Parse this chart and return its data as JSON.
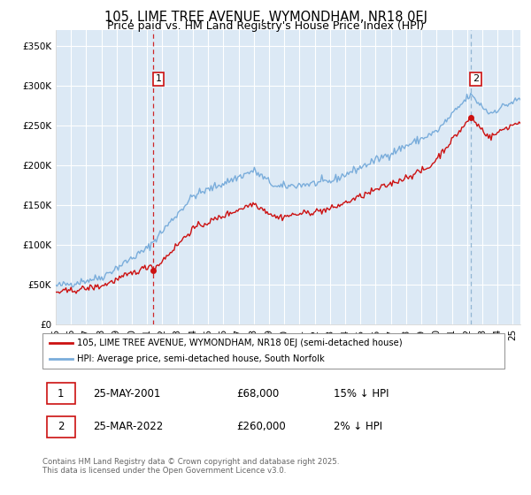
{
  "title": "105, LIME TREE AVENUE, WYMONDHAM, NR18 0EJ",
  "subtitle": "Price paid vs. HM Land Registry's House Price Index (HPI)",
  "yticks": [
    0,
    50000,
    100000,
    150000,
    200000,
    250000,
    300000,
    350000
  ],
  "ytick_labels": [
    "£0",
    "£50K",
    "£100K",
    "£150K",
    "£200K",
    "£250K",
    "£300K",
    "£350K"
  ],
  "xlim_start": 1995,
  "xlim_end": 2025.5,
  "ylim": [
    0,
    370000
  ],
  "background_color": "#ffffff",
  "plot_bg_color": "#dce9f5",
  "grid_color": "#ffffff",
  "hpi_color": "#7aaddb",
  "price_color": "#cc1111",
  "dash1_color": "#cc1111",
  "dash2_color": "#8ab0d0",
  "marker1_year": 2001.38,
  "marker1_price": 68000,
  "marker2_year": 2022.22,
  "marker2_price": 260000,
  "legend_label1": "105, LIME TREE AVENUE, WYMONDHAM, NR18 0EJ (semi-detached house)",
  "legend_label2": "HPI: Average price, semi-detached house, South Norfolk",
  "table_row1": [
    "1",
    "25-MAY-2001",
    "£68,000",
    "15% ↓ HPI"
  ],
  "table_row2": [
    "2",
    "25-MAR-2022",
    "£260,000",
    "2% ↓ HPI"
  ],
  "footer": "Contains HM Land Registry data © Crown copyright and database right 2025.\nThis data is licensed under the Open Government Licence v3.0.",
  "title_fontsize": 10.5,
  "subtitle_fontsize": 9,
  "tick_fontsize": 7.5
}
